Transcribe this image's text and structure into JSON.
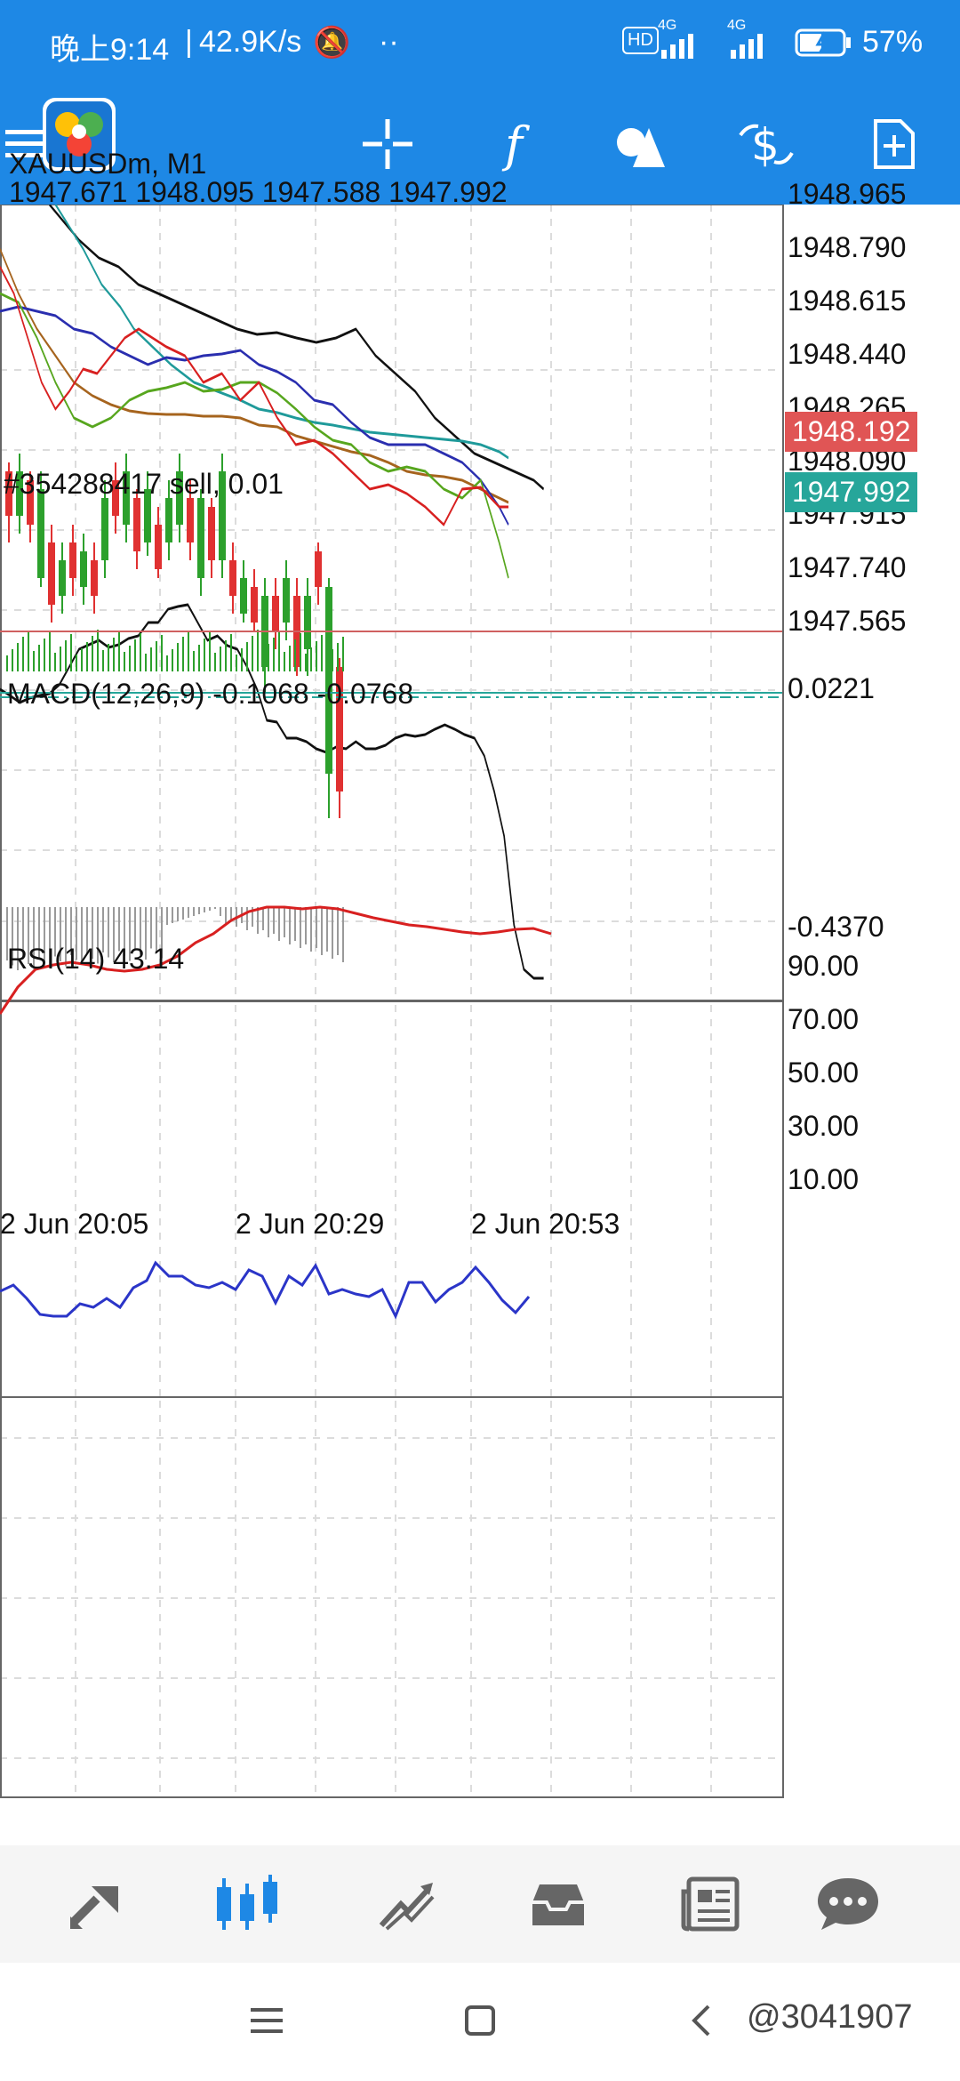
{
  "status": {
    "time": "晚上9:14",
    "speed": "42.9K/s",
    "battery": "57%",
    "signal1": "4G",
    "signal2": "4G",
    "hd": "HD"
  },
  "chart_header": {
    "symbol": "XAUUSDm, M1",
    "ohlc": "1947.671 1948.095 1947.588 1947.992",
    "order": "#354288417 sell, 0.01",
    "macd": "MACD(12,26,9) -0.1068 -0.0768",
    "rsi": "RSI(14) 43.14"
  },
  "axes": {
    "price_ticks": [
      "1948.965",
      "1948.790",
      "1948.615",
      "1948.440",
      "1948.265",
      "1948.090",
      "1947.915",
      "1947.740",
      "1947.565"
    ],
    "price_tag_red": "1948.192",
    "price_tag_green": "1947.992",
    "macd_top": "0.0221",
    "macd_bottom": "-0.4370",
    "rsi_ticks": [
      "90.00",
      "70.00",
      "50.00",
      "30.00",
      "10.00"
    ],
    "time_labels": [
      "2 Jun 20:05",
      "2 Jun 20:29",
      "2 Jun 20:53"
    ]
  },
  "colors": {
    "accent": "#1E88E5",
    "bull": "#2CA02C",
    "bear": "#E03131",
    "tag_red": "#E05555",
    "tag_green": "#26A69A",
    "grid": "#d9d9d9",
    "rsi_line": "#2B35C8",
    "macd_signal": "#E03131"
  },
  "bottom_nav": [
    "quotes-icon",
    "chart-icon",
    "trade-icon",
    "history-icon",
    "news-icon",
    "chat-icon"
  ],
  "watermark": "@3041907"
}
